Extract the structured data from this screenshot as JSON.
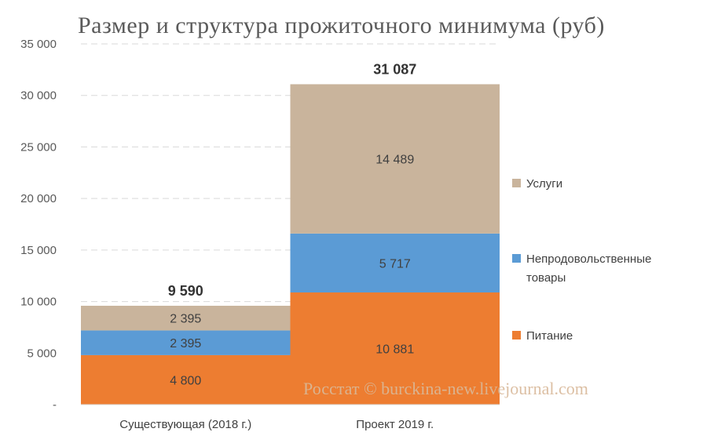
{
  "chart_data": {
    "type": "bar",
    "stacked": true,
    "title": "Размер и структура прожиточного минимума (руб)",
    "categories": [
      "Существующая (2018 г.)",
      "Проект 2019 г."
    ],
    "series": [
      {
        "name": "Питание",
        "values": [
          4800,
          10881
        ],
        "labels": [
          "4 800",
          "10 881"
        ],
        "color": "#ed7d31"
      },
      {
        "name": "Непродовольственные товары",
        "values": [
          2395,
          5717
        ],
        "labels": [
          "2 395",
          "5 717"
        ],
        "color": "#5b9bd5"
      },
      {
        "name": "Услуги",
        "values": [
          2395,
          14489
        ],
        "labels": [
          "2 395",
          "14 489"
        ],
        "color": "#c9b49c"
      }
    ],
    "totals": [
      "9 590",
      "31 087"
    ],
    "ylim": [
      0,
      35000
    ],
    "yticks": [
      {
        "value": 0,
        "label": "-"
      },
      {
        "value": 5000,
        "label": "5 000"
      },
      {
        "value": 10000,
        "label": "10 000"
      },
      {
        "value": 15000,
        "label": "15 000"
      },
      {
        "value": 20000,
        "label": "20 000"
      },
      {
        "value": 25000,
        "label": "25 000"
      },
      {
        "value": 30000,
        "label": "30 000"
      },
      {
        "value": 35000,
        "label": "35 000"
      }
    ],
    "grid": true,
    "legend": "right",
    "legend_order": [
      "Услуги",
      "Непродовольственные товары",
      "Питание"
    ]
  },
  "watermark": "Росстат © burckina-new.livejournal.com"
}
